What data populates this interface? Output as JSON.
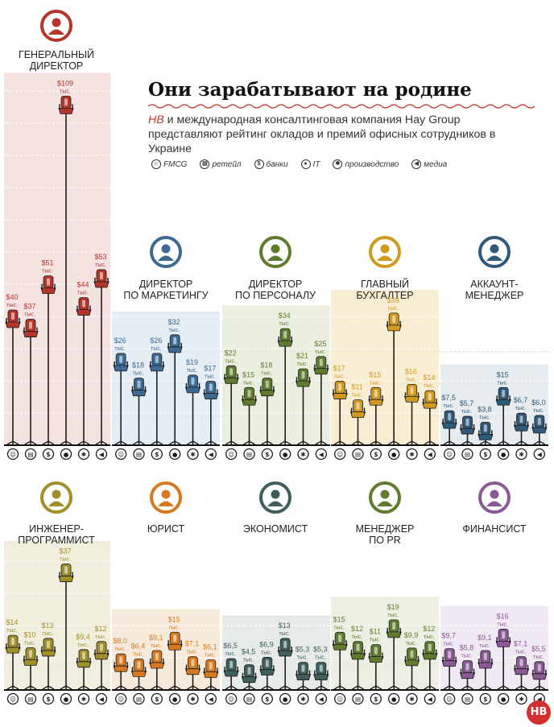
{
  "title": "Они зарабатывают на родине",
  "subtitle_highlight": "НВ",
  "subtitle": " и международная консалтинговая компания Hay Group представляют рейтинг окладов и премий офисных сотрудников в Украине",
  "logo_text": "НВ",
  "legend": [
    {
      "label": "FMCG",
      "icon": "fmcg-icon"
    },
    {
      "label": "ретейл",
      "icon": "retail-icon"
    },
    {
      "label": "банки",
      "icon": "banks-icon"
    },
    {
      "label": "IT",
      "icon": "it-icon"
    },
    {
      "label": "производство",
      "icon": "production-icon"
    },
    {
      "label": "медиа",
      "icon": "media-icon"
    }
  ],
  "unit_label": "тыс.",
  "colors": {
    "red": "#b5352a",
    "blue": "#3d6a94",
    "green": "#5f7c2e",
    "gold": "#d09a20",
    "teal": "#3f5f5c",
    "purple": "#8a5a94",
    "orange": "#d57a20",
    "olive": "#a18f2a"
  },
  "chart_data": [
    {
      "type": "bar",
      "panel": "ceo",
      "title": "ГЕНЕРАЛЬНЫЙ ДИРЕКТОР",
      "title_lines": [
        "ГЕНЕРАЛЬНЫЙ",
        "ДИРЕКТОР"
      ],
      "color": "#b5352a",
      "bg": "#f2d9d8",
      "role_icon": "ceo-icon",
      "categories": [
        "FMCG",
        "ретейл",
        "банки",
        "IT",
        "производство",
        "медиа"
      ],
      "values": [
        40,
        37,
        51,
        109,
        44,
        53
      ],
      "labels": [
        "$40",
        "$37",
        "$51",
        "$109",
        "$44",
        "$53"
      ],
      "unit": "тыс."
    },
    {
      "type": "bar",
      "panel": "marketing",
      "title": "ДИРЕКТОР ПО МАРКЕТИНГУ",
      "title_lines": [
        "ДИРЕКТОР",
        "ПО МАРКЕТИНГУ"
      ],
      "color": "#3d6a94",
      "bg": "#dce7f1",
      "role_icon": "marketing-director-icon",
      "categories": [
        "FMCG",
        "ретейл",
        "банки",
        "IT",
        "производство",
        "медиа"
      ],
      "values": [
        26,
        18,
        26,
        32,
        19,
        17
      ],
      "labels": [
        "$26",
        "$18",
        "$26",
        "$32",
        "$19",
        "$17"
      ],
      "unit": "тыс."
    },
    {
      "type": "bar",
      "panel": "hr",
      "title": "ДИРЕКТОР ПО ПЕРСОНАЛУ",
      "title_lines": [
        "ДИРЕКТОР",
        "ПО ПЕРСОНАЛУ"
      ],
      "color": "#5f7c2e",
      "bg": "#e3e9d6",
      "role_icon": "hr-director-icon",
      "categories": [
        "FMCG",
        "ретейл",
        "банки",
        "IT",
        "производство",
        "медиа"
      ],
      "values": [
        22,
        15,
        18,
        34,
        21,
        25
      ],
      "labels": [
        "$22",
        "$15",
        "$18",
        "$34",
        "$21",
        "$25"
      ],
      "unit": "тыс."
    },
    {
      "type": "bar",
      "panel": "accountant",
      "title": "ГЛАВНЫЙ БУХГАЛТЕР",
      "title_lines": [
        "ГЛАВНЫЙ",
        "БУХГАЛТЕР"
      ],
      "color": "#d09a20",
      "bg": "#f7e7c4",
      "role_icon": "accountant-icon",
      "categories": [
        "FMCG",
        "ретейл",
        "банки",
        "IT",
        "производство",
        "медиа"
      ],
      "values": [
        17,
        11,
        15,
        39,
        16,
        14
      ],
      "labels": [
        "$17",
        "$11",
        "$15",
        "$39",
        "$16",
        "$14"
      ],
      "unit": "тыс."
    },
    {
      "type": "bar",
      "panel": "account",
      "title": "АККАУНТ-МЕНЕДЖЕР",
      "title_lines": [
        "АККАУНТ-",
        "МЕНЕДЖЕР"
      ],
      "color": "#2f5a7a",
      "bg": "#dfe6ec",
      "role_icon": "account-manager-icon",
      "categories": [
        "FMCG",
        "ретейл",
        "банки",
        "IT",
        "производство",
        "медиа"
      ],
      "values": [
        7.5,
        5.7,
        3.8,
        15,
        6.7,
        6.0
      ],
      "labels": [
        "$7,5",
        "$5,7",
        "$3,8",
        "$15",
        "$6,7",
        "$6,0"
      ],
      "unit": "тыс."
    },
    {
      "type": "bar",
      "panel": "engineer",
      "title": "ИНЖЕНЕР-ПРОГРАММИСТ",
      "title_lines": [
        "ИНЖЕНЕР-",
        "ПРОГРАММИСТ"
      ],
      "color": "#a18f2a",
      "bg": "#ede8d2",
      "role_icon": "engineer-icon",
      "categories": [
        "FMCG",
        "ретейл",
        "банки",
        "IT",
        "производство",
        "медиа"
      ],
      "values": [
        14,
        10,
        13,
        37,
        9.4,
        12
      ],
      "labels": [
        "$14",
        "$10",
        "$13",
        "$37",
        "$9,4",
        "$12"
      ],
      "unit": "тыс."
    },
    {
      "type": "bar",
      "panel": "lawyer",
      "title": "ЮРИСТ",
      "title_lines": [
        "ЮРИСТ"
      ],
      "color": "#d57a20",
      "bg": "#f6e3cf",
      "role_icon": "lawyer-icon",
      "categories": [
        "FMCG",
        "ретейл",
        "банки",
        "IT",
        "производство",
        "медиа"
      ],
      "values": [
        8.0,
        6.4,
        9.1,
        15,
        7.1,
        6.1
      ],
      "labels": [
        "$8,0",
        "$6,4",
        "$9,1",
        "$15",
        "$7,1",
        "$6,1"
      ],
      "unit": "тыс."
    },
    {
      "type": "bar",
      "panel": "economist",
      "title": "ЭКОНОМИСТ",
      "title_lines": [
        "ЭКОНОМИСТ"
      ],
      "color": "#3f5f5c",
      "bg": "#dde4e3",
      "role_icon": "economist-icon",
      "categories": [
        "FMCG",
        "ретейл",
        "банки",
        "IT",
        "производство",
        "медиа"
      ],
      "values": [
        6.5,
        4.5,
        6.9,
        13,
        5.3,
        5.3
      ],
      "labels": [
        "$6,5",
        "$4,5",
        "$6,9",
        "$13",
        "$5,3",
        "$5,3"
      ],
      "unit": "тыс."
    },
    {
      "type": "bar",
      "panel": "pr",
      "title": "МЕНЕДЖЕР ПО PR",
      "title_lines": [
        "МЕНЕДЖЕР",
        "ПО PR"
      ],
      "color": "#5f7c2e",
      "bg": "#e5ebd8",
      "role_icon": "pr-manager-icon",
      "categories": [
        "FMCG",
        "ретейл",
        "банки",
        "IT",
        "производство",
        "медиа"
      ],
      "values": [
        15,
        12,
        11,
        19,
        9.9,
        12
      ],
      "labels": [
        "$15",
        "$12",
        "$11",
        "$19",
        "$9,9",
        "$12"
      ],
      "unit": "тыс."
    },
    {
      "type": "bar",
      "panel": "finance",
      "title": "ФИНАНСИСТ",
      "title_lines": [
        "ФИНАНСИСТ"
      ],
      "color": "#8a5a94",
      "bg": "#ebe0ee",
      "role_icon": "financier-icon",
      "categories": [
        "FMCG",
        "ретейл",
        "банки",
        "IT",
        "производство",
        "медиа"
      ],
      "values": [
        9.7,
        5.8,
        9.1,
        16,
        7.1,
        5.5
      ],
      "labels": [
        "$9,7",
        "$5,8",
        "$9,1",
        "$16",
        "$7,1",
        "$5,5"
      ],
      "unit": "тыс."
    }
  ]
}
